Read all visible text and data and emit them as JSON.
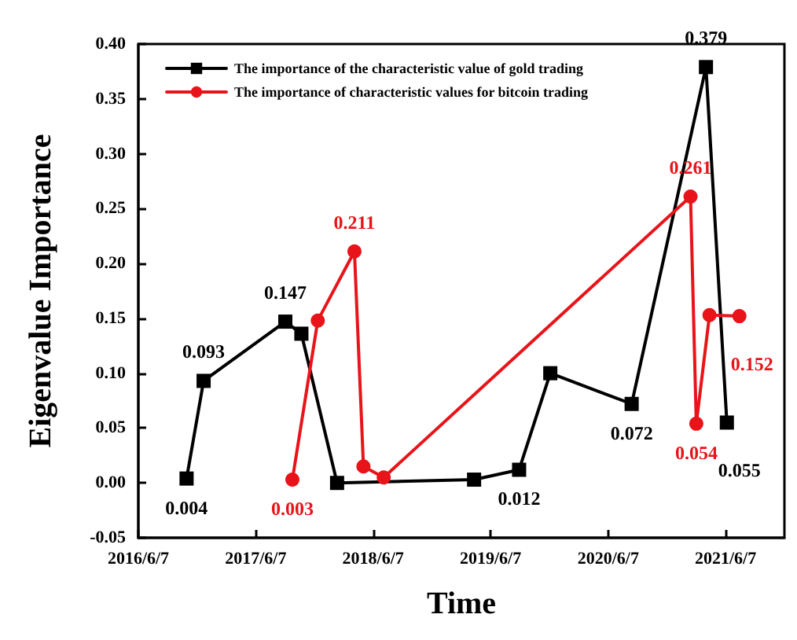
{
  "chart_data": {
    "type": "line",
    "xlabel": "Time",
    "ylabel": "Eigenvalue Importance",
    "xlim": [
      "2016-06-07",
      "2021-12-07"
    ],
    "xticks": [
      {
        "value": "2016-06-07",
        "label": "2016/6/7"
      },
      {
        "value": "2017-06-07",
        "label": "2017/6/7"
      },
      {
        "value": "2018-06-07",
        "label": "2018/6/7"
      },
      {
        "value": "2019-06-07",
        "label": "2019/6/7"
      },
      {
        "value": "2020-06-07",
        "label": "2020/6/7"
      },
      {
        "value": "2021-06-07",
        "label": "2021/6/7"
      }
    ],
    "ylim": [
      -0.05,
      0.4
    ],
    "yticks": [
      {
        "value": -0.05,
        "label": "-0.05"
      },
      {
        "value": 0,
        "label": "0.00"
      },
      {
        "value": 0.05,
        "label": "0.05"
      },
      {
        "value": 0.1,
        "label": "0.10"
      },
      {
        "value": 0.15,
        "label": "0.15"
      },
      {
        "value": 0.2,
        "label": "0.20"
      },
      {
        "value": 0.25,
        "label": "0.25"
      },
      {
        "value": 0.3,
        "label": "0.30"
      },
      {
        "value": 0.35,
        "label": "0.35"
      },
      {
        "value": 0.4,
        "label": "0.40"
      }
    ],
    "grid": false,
    "legend": "top left",
    "series": [
      {
        "name": "The importance of the characteristic value of gold trading",
        "color": "#000000",
        "marker": "square",
        "x": [
          "2016-11-04",
          "2016-12-27",
          "2017-09-07",
          "2017-10-27",
          "2018-02-15",
          "2019-04-17",
          "2019-09-04",
          "2019-12-10",
          "2020-08-19",
          "2021-04-07",
          "2021-06-11"
        ],
        "values": [
          0.004,
          0.093,
          0.147,
          0.136,
          0.0,
          0.003,
          0.012,
          0.1,
          0.072,
          0.379,
          0.055
        ],
        "value_labels": [
          "0.004",
          "0.093",
          "0.147",
          null,
          null,
          null,
          "0.012",
          null,
          "0.072",
          "0.379",
          "0.055"
        ]
      },
      {
        "name": "The importance of characteristic values for bitcoin trading",
        "color": "#e8141a",
        "marker": "circle",
        "x": [
          "2017-09-29",
          "2017-12-17",
          "2018-04-10",
          "2018-05-08",
          "2018-07-10",
          "2021-02-18",
          "2021-03-08",
          "2021-04-18",
          "2021-07-20"
        ],
        "values": [
          0.003,
          0.148,
          0.211,
          0.015,
          0.005,
          0.261,
          0.054,
          0.153,
          0.152
        ],
        "value_labels": [
          "0.003",
          null,
          "0.211",
          null,
          null,
          "0.261",
          "0.054",
          null,
          "0.152"
        ]
      }
    ]
  }
}
